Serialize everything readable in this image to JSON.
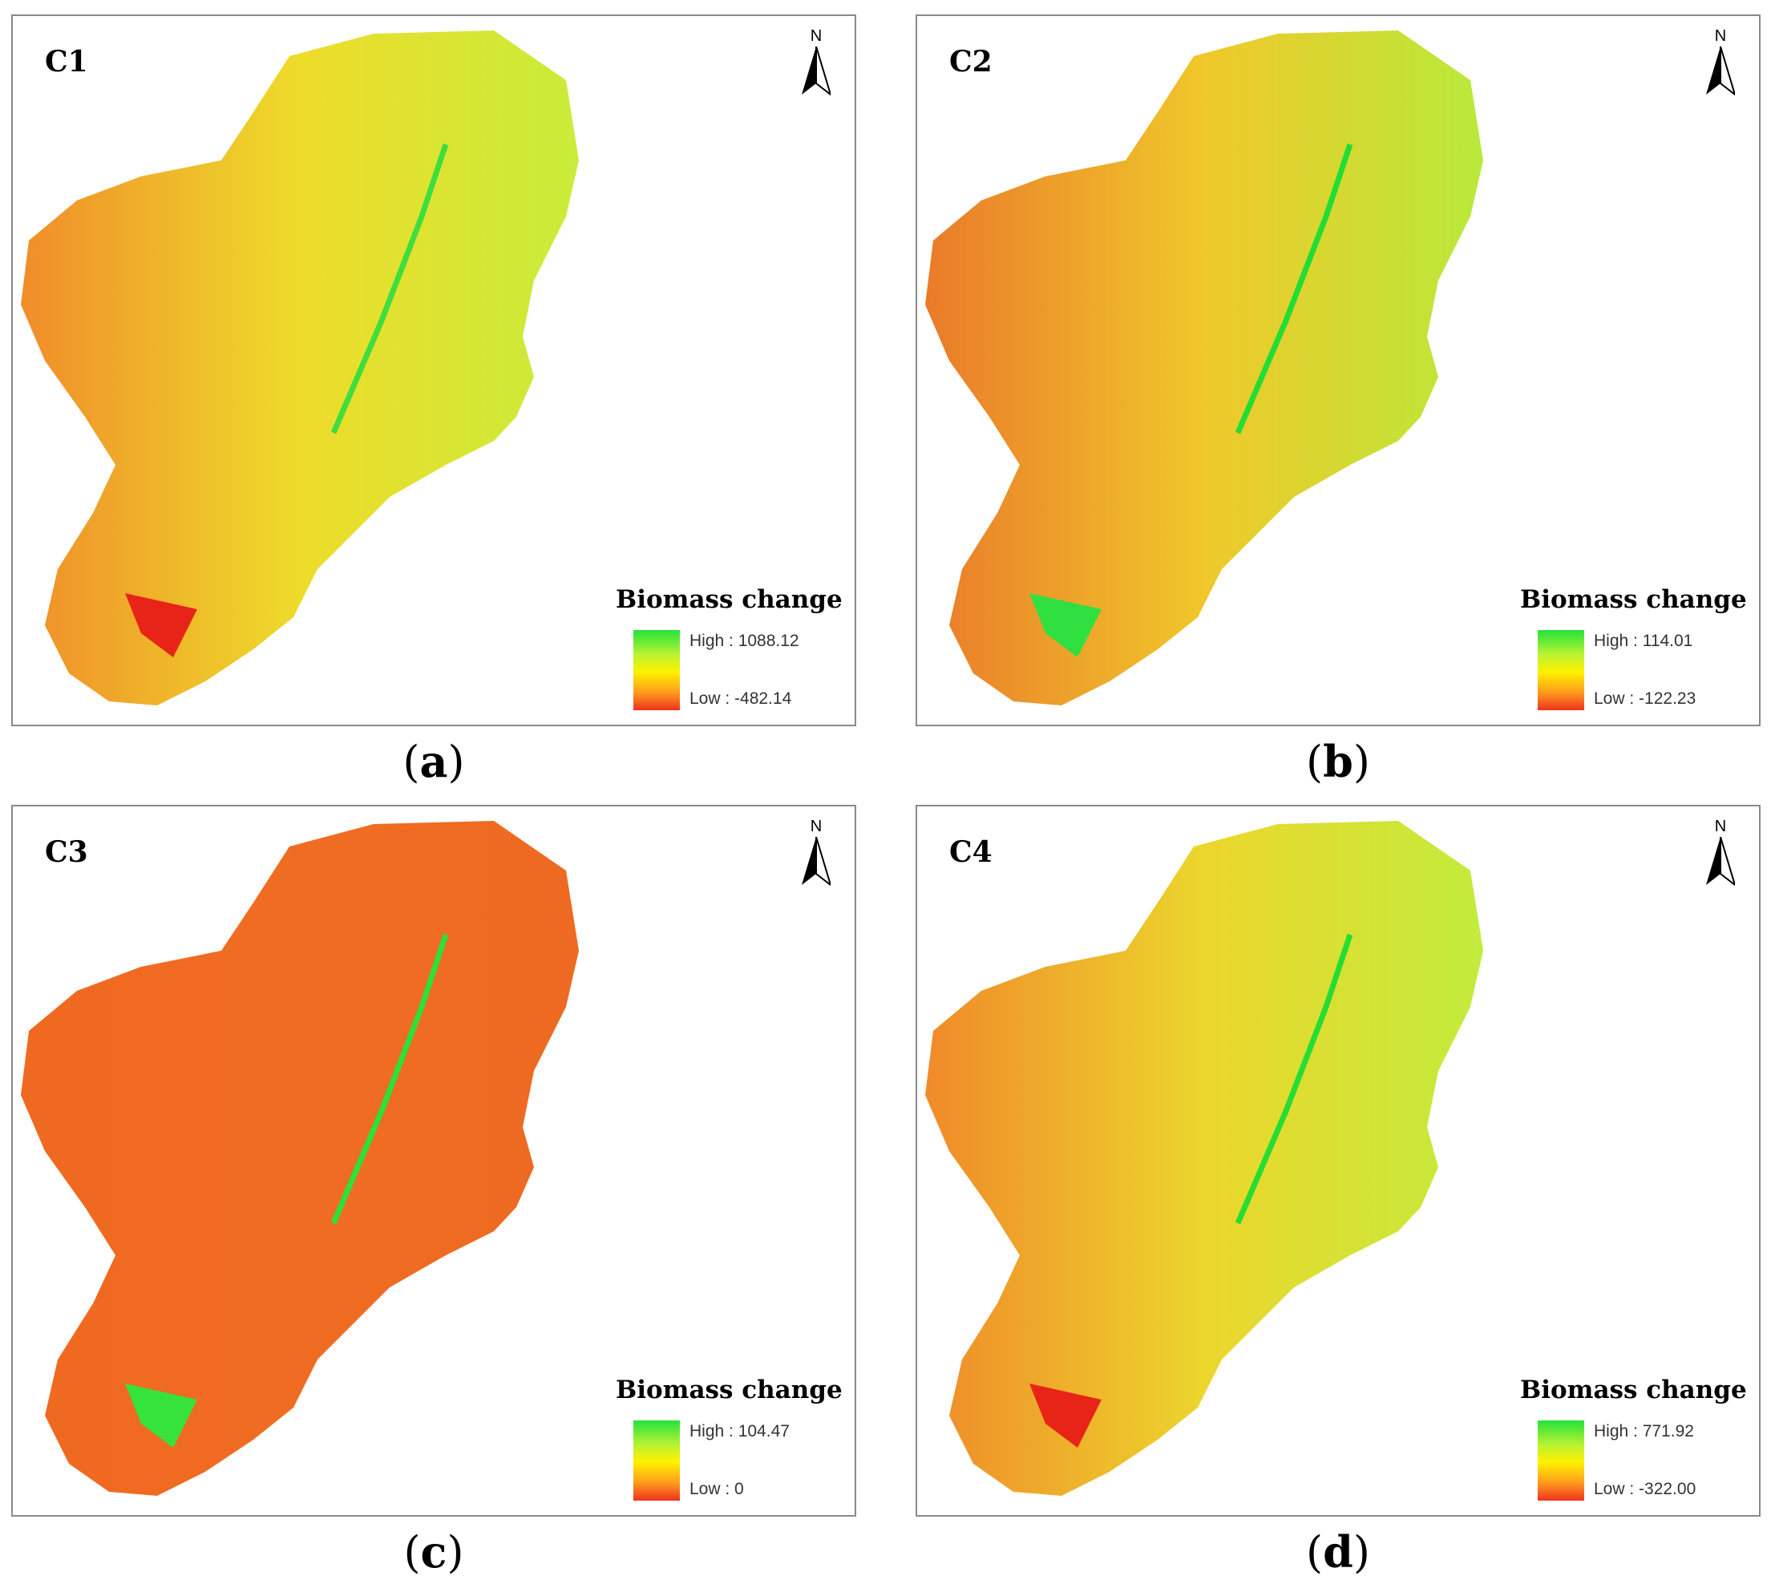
{
  "panels": [
    {
      "id": "a",
      "title": "C1",
      "caption_letter": "a",
      "legend": {
        "title": "Biomass change",
        "high": "High : 1088.12",
        "low": "Low : -482.14"
      },
      "colors": {
        "west": "#f08d2a",
        "east": "#c9ec3a",
        "spot_sw": "#e82418",
        "channel": "#3ede3e"
      }
    },
    {
      "id": "b",
      "title": "C2",
      "caption_letter": "b",
      "legend": {
        "title": "Biomass change",
        "high": "High : 114.01",
        "low": "Low : -122.23"
      },
      "colors": {
        "west": "#ea7a2a",
        "east": "#b8ea3a",
        "spot_sw": "#30e040",
        "channel": "#22dd33"
      }
    },
    {
      "id": "c",
      "title": "C3",
      "caption_letter": "c",
      "legend": {
        "title": "Biomass change",
        "high": "High : 104.47",
        "low": "Low : 0"
      },
      "colors": {
        "west": "#ef6a20",
        "east": "#ee6a22",
        "spot_sw": "#36e23c",
        "channel": "#2ee03a"
      }
    },
    {
      "id": "d",
      "title": "C4",
      "caption_letter": "d",
      "legend": {
        "title": "Biomass change",
        "high": "High : 771.92",
        "low": "Low : -322.00"
      },
      "colors": {
        "west": "#f08a2a",
        "east": "#c2ec3c",
        "spot_sw": "#e82418",
        "channel": "#26dd34"
      }
    }
  ],
  "north_label": "N"
}
